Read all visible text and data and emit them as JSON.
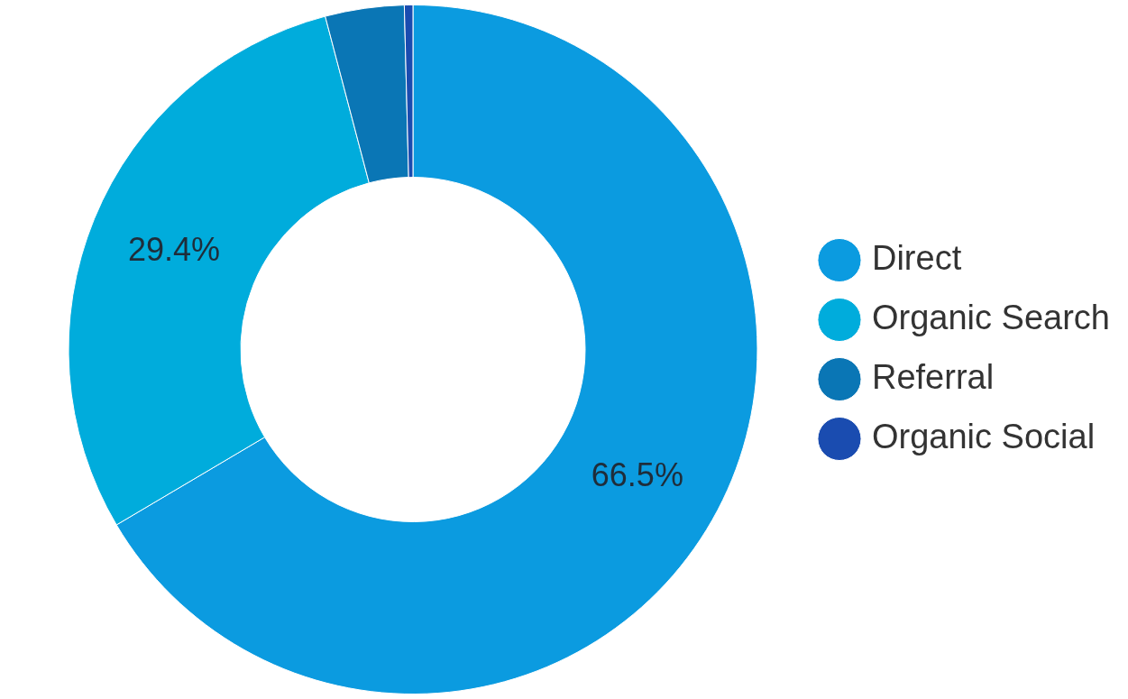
{
  "chart_data": {
    "type": "donut",
    "categories": [
      "Direct",
      "Organic Search",
      "Referral",
      "Organic Social"
    ],
    "values": [
      66.5,
      29.4,
      3.7,
      0.4
    ],
    "colors": [
      "#0b9be0",
      "#00acdc",
      "#0a76b5",
      "#1a4cb0"
    ],
    "value_labels": [
      "66.5%",
      "29.4%",
      null,
      null
    ],
    "legend": "right"
  }
}
